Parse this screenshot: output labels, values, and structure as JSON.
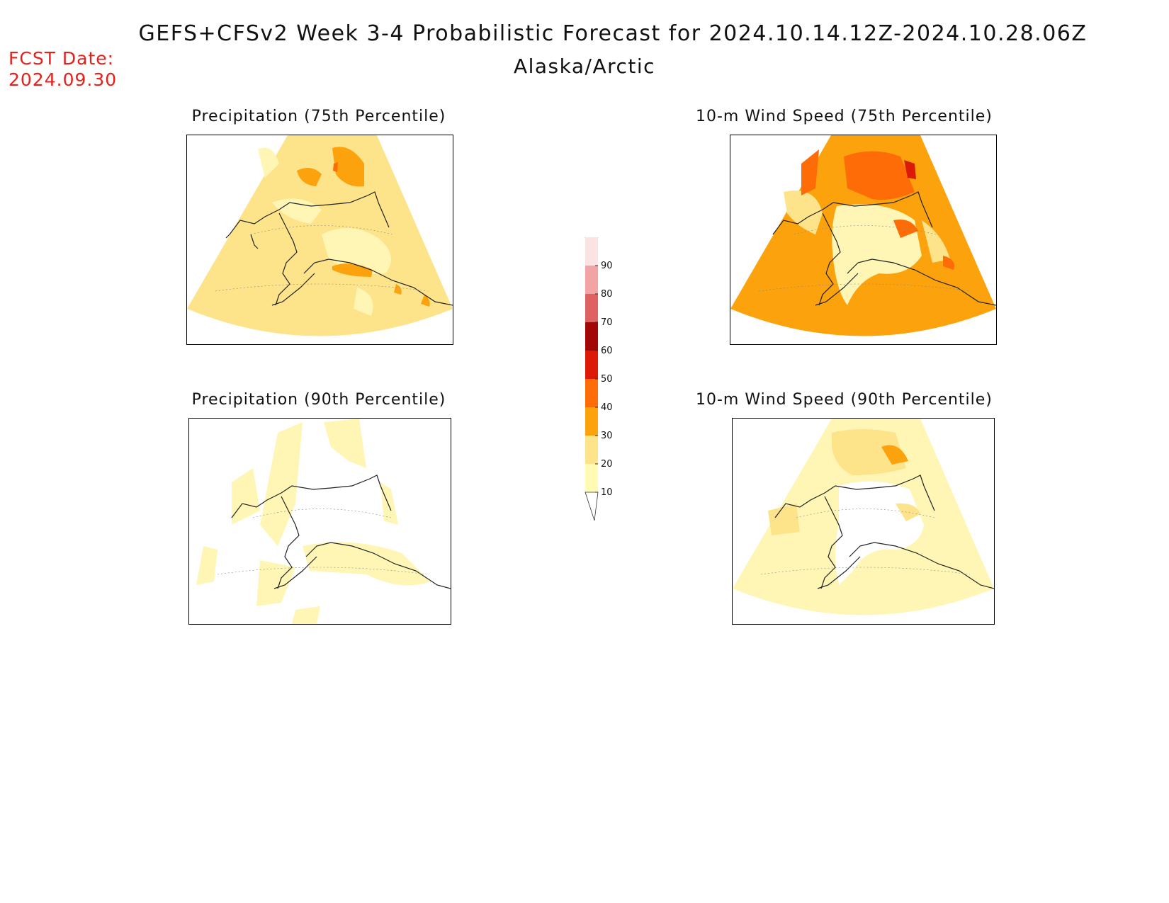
{
  "header": {
    "title": "GEFS+CFSv2 Week 3-4 Probabilistic Forecast for 2024.10.14.12Z-2024.10.28.06Z",
    "subtitle": "Alaska/Arctic",
    "fcst_date_label": "FCST Date:",
    "fcst_date_value": "2024.09.30"
  },
  "panels": [
    {
      "id": "precip75",
      "title": "Precipitation (75th Percentile)",
      "base_color": "#fde38a"
    },
    {
      "id": "wind75",
      "title": "10-m Wind Speed (75th Percentile)",
      "base_color": "#fba20c"
    },
    {
      "id": "precip90",
      "title": "Precipitation (90th Percentile)",
      "base_color": "#ffffff"
    },
    {
      "id": "wind90",
      "title": "10-m Wind Speed (90th Percentile)",
      "base_color": "#fff6b6"
    }
  ],
  "colorbar": {
    "levels": [
      {
        "label": "10",
        "color": "#fffbb5"
      },
      {
        "label": "20",
        "color": "#fde38a"
      },
      {
        "label": "30",
        "color": "#fba20c"
      },
      {
        "label": "40",
        "color": "#fe6c08"
      },
      {
        "label": "50",
        "color": "#dd1a07"
      },
      {
        "label": "60",
        "color": "#a10806"
      },
      {
        "label": "70",
        "color": "#de6262"
      },
      {
        "label": "80",
        "color": "#f2a3a3"
      },
      {
        "label": "90",
        "color": "#fbe3e3"
      }
    ]
  }
}
